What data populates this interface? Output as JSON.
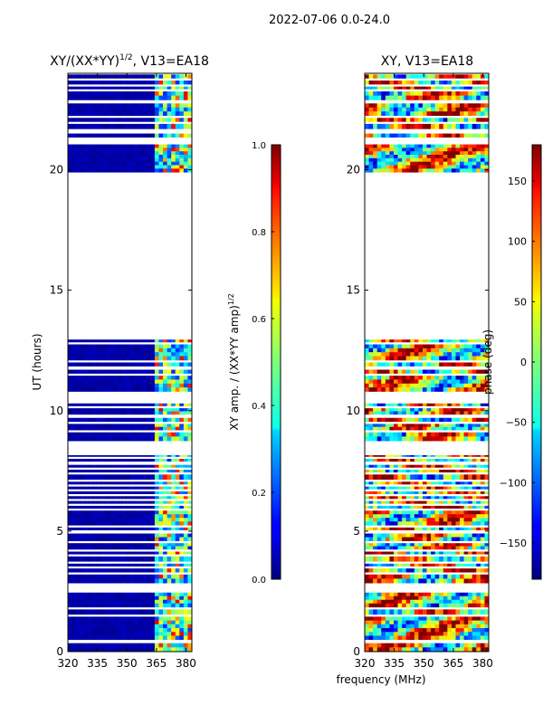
{
  "suptitle": "2022-07-06 0.0-24.0",
  "x_shared_label": "frequency (MHz)",
  "chart_data": [
    {
      "type": "heatmap",
      "title_prefix": "XY/(XX*YY)",
      "title_exponent": "1/2",
      "title_suffix": ", V13=EA18",
      "ylabel": "UT (hours)",
      "xlim": [
        320,
        383
      ],
      "ylim": [
        0,
        24
      ],
      "xticks": [
        320,
        335,
        350,
        365,
        380
      ],
      "yticks": [
        0,
        5,
        10,
        15,
        20
      ],
      "colormap": "jet",
      "value_range": [
        0,
        1
      ],
      "bright_band_mhz": [
        364,
        382
      ],
      "colorbar": {
        "label_prefix": "XY amp. / (XX*YY amp)",
        "label_exponent": "1/2",
        "range": [
          0,
          1
        ],
        "ticks": [
          "0.0",
          "0.2",
          "0.4",
          "0.6",
          "0.8",
          "1.0"
        ]
      }
    },
    {
      "type": "heatmap",
      "title": "XY, V13=EA18",
      "xlim": [
        320,
        383
      ],
      "ylim": [
        0,
        24
      ],
      "xticks": [
        320,
        335,
        350,
        365,
        380
      ],
      "yticks": [
        0,
        5,
        10,
        15,
        20
      ],
      "colormap": "jet",
      "value_range": [
        -180,
        180
      ],
      "colorbar": {
        "label": "phase (deg)",
        "range": [
          -180,
          180
        ],
        "ticks": [
          "150",
          "100",
          "50",
          "0",
          "−50",
          "−100",
          "−150"
        ]
      }
    }
  ],
  "data_segments_ut": [
    [
      0.0,
      0.35
    ],
    [
      0.5,
      1.45
    ],
    [
      1.55,
      1.75
    ],
    [
      1.85,
      2.45
    ],
    [
      2.85,
      3.2
    ],
    [
      3.3,
      3.45
    ],
    [
      3.55,
      3.65
    ],
    [
      3.75,
      3.95
    ],
    [
      4.05,
      4.15
    ],
    [
      4.25,
      4.5
    ],
    [
      4.6,
      4.9
    ],
    [
      5.05,
      5.15
    ],
    [
      5.25,
      5.85
    ],
    [
      5.95,
      6.05
    ],
    [
      6.15,
      6.25
    ],
    [
      6.35,
      6.45
    ],
    [
      6.55,
      6.65
    ],
    [
      6.75,
      6.85
    ],
    [
      6.95,
      7.05
    ],
    [
      7.15,
      7.35
    ],
    [
      7.45,
      7.55
    ],
    [
      7.65,
      7.75
    ],
    [
      7.9,
      8.0
    ],
    [
      8.1,
      8.15
    ],
    [
      8.75,
      9.1
    ],
    [
      9.2,
      9.45
    ],
    [
      9.55,
      9.7
    ],
    [
      9.85,
      10.1
    ],
    [
      10.2,
      10.3
    ],
    [
      10.8,
      11.45
    ],
    [
      11.55,
      11.7
    ],
    [
      11.85,
      12.0
    ],
    [
      12.1,
      12.75
    ],
    [
      12.85,
      12.95
    ],
    [
      19.9,
      21.05
    ],
    [
      21.35,
      21.5
    ],
    [
      21.7,
      21.9
    ],
    [
      22.0,
      22.15
    ],
    [
      22.25,
      22.75
    ],
    [
      22.9,
      23.25
    ],
    [
      23.35,
      23.45
    ],
    [
      23.55,
      23.7
    ],
    [
      23.8,
      23.95
    ]
  ]
}
